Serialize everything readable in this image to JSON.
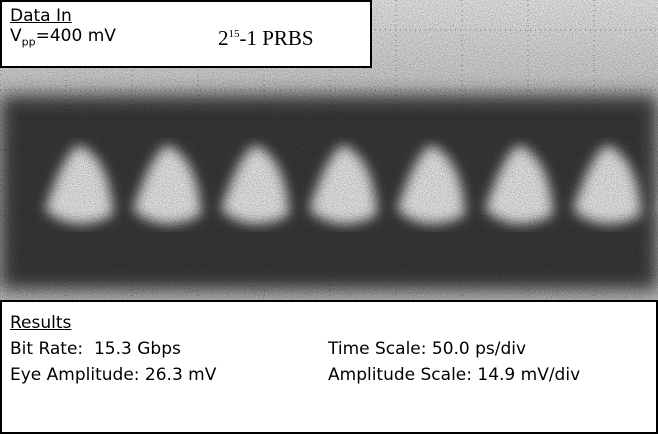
{
  "panel": {
    "title": "Data In",
    "voltage_symbol": "V",
    "voltage_subscript": "pp",
    "voltage_value": "=400 mV",
    "pattern_base": "2",
    "pattern_exponent": "15",
    "pattern_rest": "-1 PRBS"
  },
  "results": {
    "title": "Results",
    "bit_rate": "Bit Rate:  15.3 Gbps",
    "time_scale": "Time Scale: 50.0 ps/div",
    "eye_amplitude": "Eye Amplitude: 26.3 mV",
    "amplitude_scale": "Amplitude Scale: 14.9 mV/div"
  }
}
